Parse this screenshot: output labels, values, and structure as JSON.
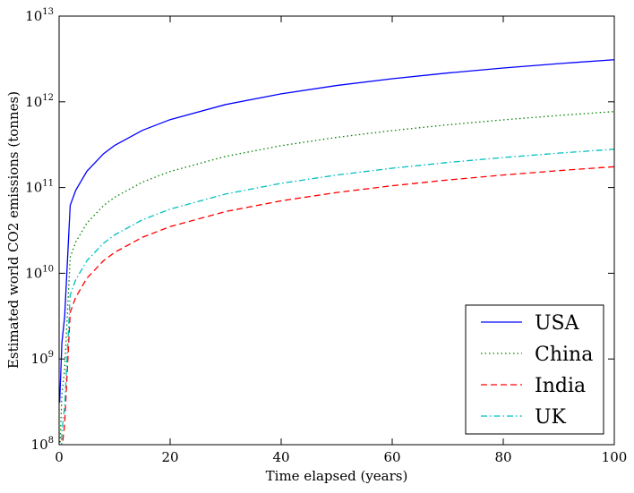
{
  "chart_data": {
    "type": "line",
    "title": "",
    "xlabel": "Time elapsed (years)",
    "ylabel": "Estimated world CO2 emissions (tonnes)",
    "xlim": [
      0,
      100
    ],
    "ylim": [
      100000000,
      10000000000000
    ],
    "yscale": "log",
    "grid": false,
    "legend_position": "lower-right",
    "x_ticks": [
      0,
      20,
      40,
      60,
      80,
      100
    ],
    "x_tick_labels": [
      "0",
      "20",
      "40",
      "60",
      "80",
      "100"
    ],
    "y_ticks": [
      100000000,
      1000000000,
      10000000000,
      100000000000,
      1000000000000,
      10000000000000
    ],
    "y_tick_bases": [
      "10",
      "10",
      "10",
      "10",
      "10",
      "10"
    ],
    "y_tick_exponents": [
      "8",
      "9",
      "10",
      "11",
      "12",
      "13"
    ],
    "x": [
      0.1,
      0.5,
      1,
      2,
      3,
      5,
      8,
      10,
      15,
      20,
      30,
      40,
      50,
      60,
      70,
      80,
      90,
      100
    ],
    "series": [
      {
        "name": "USA",
        "color": "#0000ff",
        "dash": "solid",
        "values": [
          310000000,
          1550000000,
          3100000000,
          62000000000,
          93000000000,
          155000000000,
          248000000000,
          310000000000,
          465000000000,
          620000000000,
          930000000000,
          1240000000000,
          1550000000000,
          1860000000000,
          2170000000000,
          2480000000000,
          2790000000000,
          3100000000000
        ]
      },
      {
        "name": "China",
        "color": "#008000",
        "dash": "dotted",
        "values": [
          77000000,
          385000000,
          770000000,
          15400000000,
          23100000000,
          38500000000,
          61600000000,
          77000000000,
          115500000000,
          154000000000,
          231000000000,
          308000000000,
          385000000000,
          462000000000,
          539000000000,
          616000000000,
          693000000000,
          770000000000
        ]
      },
      {
        "name": "India",
        "color": "#ff0000",
        "dash": "dashed",
        "values": [
          17500000,
          87500000,
          175000000,
          3500000000,
          5250000000,
          8750000000,
          14000000000,
          17500000000,
          26250000000,
          35000000000,
          52500000000,
          70000000000,
          87500000000,
          105000000000,
          122500000000,
          140000000000,
          157500000000,
          175000000000
        ]
      },
      {
        "name": "UK",
        "color": "#00bfbf",
        "dash": "dashdot",
        "values": [
          28000000,
          140000000,
          280000000,
          5600000000,
          8400000000,
          14000000000,
          22400000000,
          28000000000,
          42000000000,
          56000000000,
          84000000000,
          112000000000,
          140000000000,
          168000000000,
          196000000000,
          224000000000,
          252000000000,
          280000000000
        ]
      }
    ]
  }
}
